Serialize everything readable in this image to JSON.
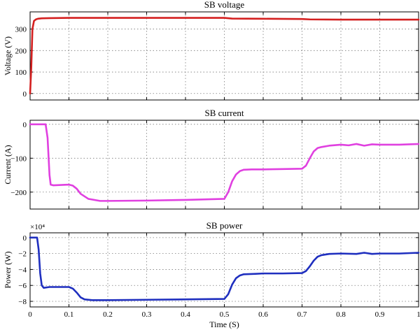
{
  "chart_data": [
    {
      "type": "line",
      "title": "SB voltage",
      "xlabel": "",
      "ylabel": "Voltage (V)",
      "xlim": [
        0,
        1
      ],
      "ylim": [
        -30,
        380
      ],
      "yticks": [
        0,
        100,
        200,
        300
      ],
      "ytick_labels": [
        "0",
        "100",
        "200",
        "300"
      ],
      "xticks": [
        0,
        0.1,
        0.2,
        0.3,
        0.4,
        0.5,
        0.6,
        0.7,
        0.8,
        0.9,
        1
      ],
      "show_xtick_labels": false,
      "grid": true,
      "exponent_label": "",
      "color": "#d42020",
      "series": [
        {
          "x": [
            0,
            0.003,
            0.006,
            0.01,
            0.015,
            0.02,
            0.03,
            0.05,
            0.1,
            0.2,
            0.3,
            0.4,
            0.5,
            0.52,
            0.6,
            0.7,
            0.72,
            0.8,
            0.9,
            1.0
          ],
          "y": [
            0,
            120,
            300,
            338,
            345,
            348,
            350,
            351,
            352,
            352,
            352,
            352,
            352,
            349,
            348,
            347,
            345,
            344,
            344,
            344
          ]
        }
      ]
    },
    {
      "type": "line",
      "title": "SB current",
      "xlabel": "",
      "ylabel": "Current (A)",
      "xlim": [
        0,
        1
      ],
      "ylim": [
        -250,
        12
      ],
      "yticks": [
        -200,
        -100,
        0
      ],
      "ytick_labels": [
        "−200",
        "−100",
        "0"
      ],
      "xticks": [
        0,
        0.1,
        0.2,
        0.3,
        0.4,
        0.5,
        0.6,
        0.7,
        0.8,
        0.9,
        1
      ],
      "show_xtick_labels": false,
      "grid": true,
      "exponent_label": "",
      "color": "#e040e0",
      "series": [
        {
          "x": [
            0,
            0.04,
            0.045,
            0.05,
            0.053,
            0.06,
            0.08,
            0.1,
            0.11,
            0.12,
            0.13,
            0.15,
            0.18,
            0.2,
            0.3,
            0.4,
            0.5,
            0.51,
            0.52,
            0.53,
            0.54,
            0.55,
            0.57,
            0.6,
            0.65,
            0.7,
            0.71,
            0.72,
            0.73,
            0.74,
            0.75,
            0.77,
            0.8,
            0.82,
            0.84,
            0.86,
            0.88,
            0.9,
            0.95,
            1.0
          ],
          "y": [
            0,
            0,
            -40,
            -150,
            -178,
            -180,
            -179,
            -178,
            -181,
            -190,
            -205,
            -220,
            -226,
            -226,
            -225,
            -223,
            -220,
            -200,
            -168,
            -148,
            -138,
            -134,
            -133,
            -133,
            -132,
            -131,
            -122,
            -100,
            -80,
            -70,
            -67,
            -63,
            -60,
            -62,
            -58,
            -63,
            -59,
            -60,
            -60,
            -58
          ]
        }
      ]
    },
    {
      "type": "line",
      "title": "SB power",
      "xlabel": "Time (S)",
      "ylabel": "Power (W)",
      "xlim": [
        0,
        1
      ],
      "ylim": [
        -8.7,
        0.6
      ],
      "yticks": [
        -8,
        -6,
        -4,
        -2,
        0
      ],
      "ytick_labels": [
        "−8",
        "−6",
        "−4",
        "−2",
        "0"
      ],
      "xticks": [
        0,
        0.1,
        0.2,
        0.3,
        0.4,
        0.5,
        0.6,
        0.7,
        0.8,
        0.9,
        1
      ],
      "xtick_labels": [
        "0",
        "0.1",
        "0.2",
        "0.3",
        "0.4",
        "0.5",
        "0.6",
        "0.7",
        "0.8",
        "0.9",
        "1"
      ],
      "show_xtick_labels": true,
      "grid": true,
      "exponent_label": "×10⁴",
      "color": "#1f2fbf",
      "series": [
        {
          "x": [
            0,
            0.018,
            0.022,
            0.026,
            0.03,
            0.035,
            0.05,
            0.08,
            0.1,
            0.11,
            0.12,
            0.13,
            0.14,
            0.16,
            0.2,
            0.3,
            0.4,
            0.5,
            0.51,
            0.52,
            0.53,
            0.54,
            0.55,
            0.58,
            0.6,
            0.65,
            0.7,
            0.71,
            0.72,
            0.73,
            0.74,
            0.75,
            0.77,
            0.8,
            0.84,
            0.86,
            0.88,
            0.9,
            0.95,
            1.0
          ],
          "y": [
            0,
            0,
            -1.5,
            -4.5,
            -6.0,
            -6.3,
            -6.2,
            -6.2,
            -6.2,
            -6.4,
            -6.9,
            -7.5,
            -7.75,
            -7.85,
            -7.85,
            -7.8,
            -7.75,
            -7.7,
            -7.1,
            -5.9,
            -5.1,
            -4.75,
            -4.6,
            -4.55,
            -4.5,
            -4.5,
            -4.45,
            -4.2,
            -3.6,
            -2.9,
            -2.4,
            -2.2,
            -2.05,
            -2.0,
            -2.05,
            -1.9,
            -2.05,
            -2.0,
            -2.0,
            -1.9
          ]
        }
      ]
    }
  ]
}
